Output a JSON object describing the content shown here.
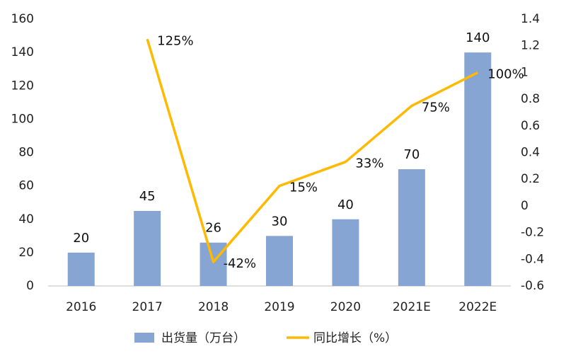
{
  "chart_data": {
    "type": "bar_line",
    "categories": [
      "2016",
      "2017",
      "2018",
      "2019",
      "2020",
      "2021E",
      "2022E"
    ],
    "series": [
      {
        "name": "出货量（万台）",
        "color": "#87a5d2",
        "type": "bar",
        "values": [
          20,
          45,
          26,
          30,
          40,
          70,
          140
        ]
      },
      {
        "name": "同比增长（%）",
        "color": "#ffb900",
        "type": "line",
        "axis": "y2",
        "values": [
          null,
          1.25,
          -0.42,
          0.15,
          0.33,
          0.75,
          1.0
        ],
        "value_labels": [
          null,
          "125%",
          "-42%",
          "15%",
          "33%",
          "75%",
          "100%"
        ]
      }
    ],
    "ylim": [
      0,
      160
    ],
    "yticks": [
      0,
      20,
      40,
      60,
      80,
      100,
      120,
      140,
      160
    ],
    "y2lim": [
      -0.6,
      1.4
    ],
    "y2ticks": [
      -0.6,
      -0.4,
      -0.2,
      0,
      0.2,
      0.4,
      0.6,
      0.8,
      1,
      1.2,
      1.4
    ],
    "legend": "bottom"
  }
}
